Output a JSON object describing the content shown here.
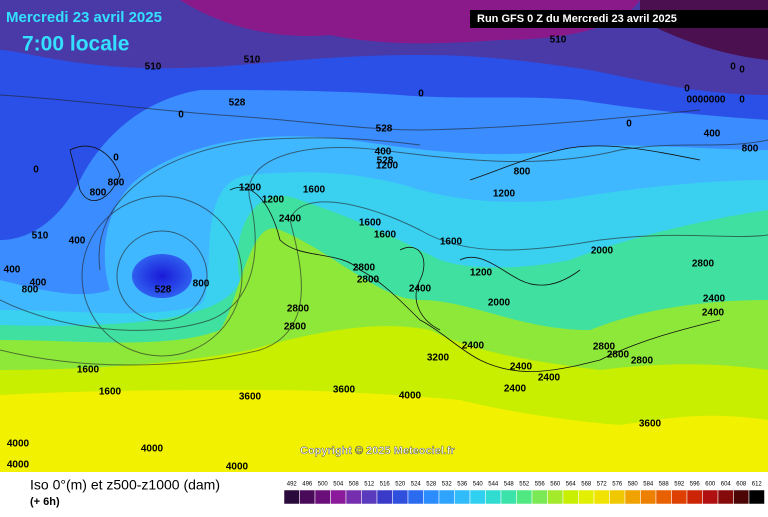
{
  "header": {
    "date": "Mercredi 23 avril 2025",
    "time": "7:00 locale",
    "run": "Run GFS 0 Z du Mercredi 23 avril 2025"
  },
  "footer": {
    "copyright": "Copyright © 2025 Meteociel.fr"
  },
  "legend": {
    "title": "Iso 0°(m) et z500-z1000 (dam)",
    "step": "(+ 6h)",
    "scale": [
      492,
      496,
      500,
      504,
      508,
      512,
      516,
      520,
      524,
      528,
      532,
      536,
      540,
      544,
      548,
      552,
      556,
      560,
      564,
      568,
      572,
      576,
      580,
      584,
      588,
      592,
      596,
      600,
      604,
      608,
      612
    ]
  },
  "map_labels": [
    "510",
    "510",
    "510",
    "510",
    "528",
    "528",
    "528",
    "0",
    "0",
    "0",
    "0",
    "0",
    "0",
    "0",
    "0",
    "0000000",
    "0",
    "400",
    "400",
    "800",
    "400",
    "800",
    "800",
    "800",
    "400",
    "400",
    "800",
    "800",
    "528",
    "1200",
    "1200",
    "1600",
    "1200",
    "1200",
    "2400",
    "1600",
    "1600",
    "1600",
    "1200",
    "2000",
    "2800",
    "2800",
    "2400",
    "2800",
    "2800",
    "2800",
    "2000",
    "2400",
    "2400",
    "2400",
    "2400",
    "2800",
    "2800",
    "2800",
    "2400",
    "2400",
    "3200",
    "1600",
    "1600",
    "3600",
    "3600",
    "4000",
    "4000",
    "4000",
    "4000",
    "3600",
    "4000"
  ]
}
